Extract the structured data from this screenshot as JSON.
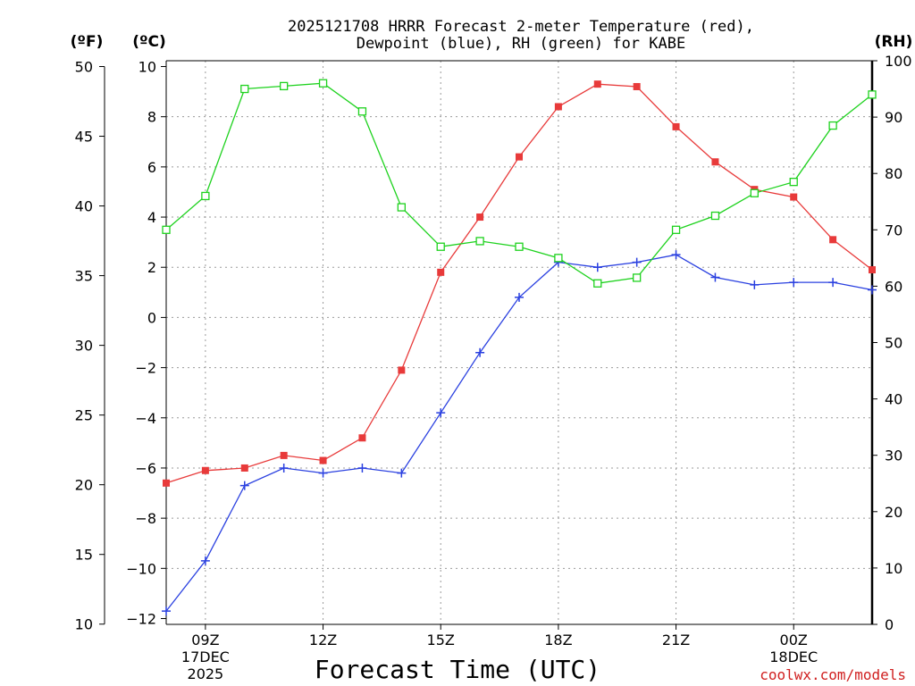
{
  "chart_data": {
    "type": "line",
    "title": [
      "2025121708 HRRR Forecast 2-meter Temperature (red),",
      "Dewpoint (blue), RH (green) for KABE"
    ],
    "xlabel": "Forecast Time (UTC)",
    "axis_units": {
      "fahrenheit": "(ºF)",
      "celsius": "(ºC)",
      "rh": "(RH)"
    },
    "x": [
      8,
      9,
      10,
      11,
      12,
      13,
      14,
      15,
      16,
      17,
      18,
      19,
      20,
      21,
      22,
      23,
      24,
      25,
      26
    ],
    "x_ticks": [
      {
        "x": 9,
        "lines": [
          "09Z",
          "17DEC",
          "2025"
        ]
      },
      {
        "x": 12,
        "lines": [
          "12Z"
        ]
      },
      {
        "x": 15,
        "lines": [
          "15Z"
        ]
      },
      {
        "x": 18,
        "lines": [
          "18Z"
        ]
      },
      {
        "x": 21,
        "lines": [
          "21Z"
        ]
      },
      {
        "x": 24,
        "lines": [
          "00Z",
          "18DEC"
        ]
      }
    ],
    "xlim": [
      8,
      26
    ],
    "celsius_ylim": [
      -12,
      10
    ],
    "celsius_ticks": [
      10,
      8,
      6,
      4,
      2,
      0,
      -2,
      -4,
      -6,
      -8,
      -10,
      -12
    ],
    "celsius_tick_labels": [
      "10",
      "8",
      "6",
      "4",
      "2",
      "0",
      "−2",
      "−4",
      "−6",
      "−8",
      "−10",
      "−12"
    ],
    "fahrenheit_ticks": [
      50,
      45,
      40,
      35,
      30,
      25,
      20,
      15,
      10
    ],
    "rh_ylim": [
      0,
      100
    ],
    "rh_ticks": [
      100,
      90,
      80,
      70,
      60,
      50,
      40,
      30,
      20,
      10,
      0
    ],
    "series": [
      {
        "name": "Temperature (°C)",
        "color": "#e83a3a",
        "marker": "square-filled",
        "axis": "celsius",
        "values": [
          -6.6,
          -6.1,
          -6.0,
          -5.5,
          -5.7,
          -4.8,
          -2.1,
          1.8,
          4.0,
          6.4,
          8.4,
          9.3,
          9.2,
          7.6,
          6.2,
          5.1,
          4.8,
          3.1,
          1.9
        ]
      },
      {
        "name": "Dewpoint (°C)",
        "color": "#2a40e0",
        "marker": "plus",
        "axis": "celsius",
        "values": [
          -11.7,
          -9.7,
          -6.7,
          -6.0,
          -6.2,
          -6.0,
          -6.2,
          -3.8,
          -1.4,
          0.8,
          2.2,
          2.0,
          2.2,
          2.5,
          1.6,
          1.3,
          1.4,
          1.4,
          1.1
        ]
      },
      {
        "name": "RH (%)",
        "color": "#1ed21e",
        "marker": "square-open",
        "axis": "rh",
        "values": [
          70,
          76,
          95,
          95.5,
          96,
          91,
          74,
          67,
          68,
          67,
          65,
          60.5,
          61.5,
          70,
          72.5,
          76.5,
          78.5,
          88.5,
          94
        ]
      }
    ]
  },
  "credit": "coolwx.com/models"
}
